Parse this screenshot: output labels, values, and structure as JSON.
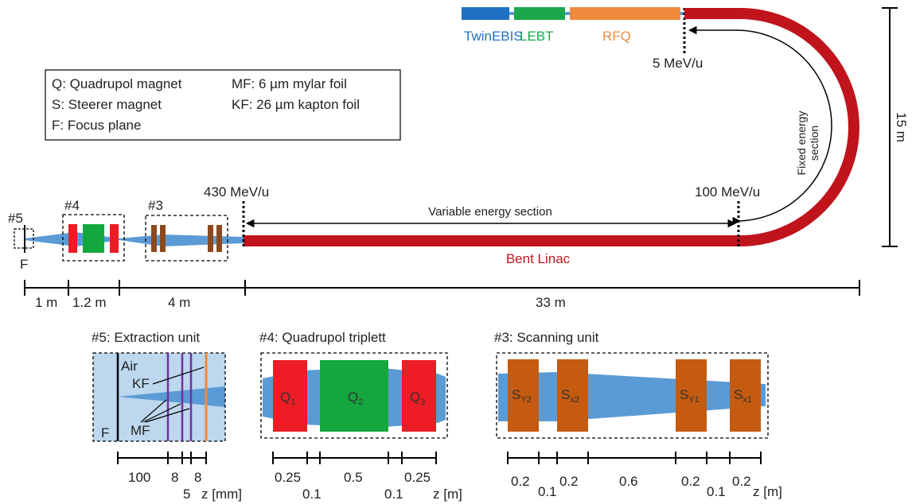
{
  "colors": {
    "twinebis": "#1f6fc4",
    "lebt": "#1aa84a",
    "rfq": "#ee8a3c",
    "linac": "#c0141c",
    "beam": "#5b9bd5",
    "quad_red": "#ee1c24",
    "quad_green": "#14a73e",
    "steerer": "#c55a11",
    "steerer_small": "#8b4a1e",
    "foil_mylar": "#7030a0",
    "foil_kapton": "#ee8a3c",
    "air": "#bdd7ee"
  },
  "sources": {
    "twinebis": "TwinEBIS",
    "lebt": "LEBT",
    "rfq": "RFQ"
  },
  "energies": {
    "e5": "5 MeV/u",
    "e100": "100 MeV/u",
    "e430": "430 MeV/u"
  },
  "sections": {
    "fixed_line1": "Fixed energy",
    "fixed_line2": "section",
    "variable": "Variable energy section",
    "bent_linac": "Bent Linac",
    "height": "15 m"
  },
  "legend": {
    "q": "Q: Quadrupol magnet",
    "s": "S: Steerer magnet",
    "f": "F: Focus plane",
    "mf": "MF: 6 µm mylar foil",
    "kf": "KF: 26 µm kapton foil"
  },
  "units": {
    "u5": "#5",
    "u4": "#4",
    "u3": "#3",
    "focus": "F"
  },
  "scale_main": {
    "d1": "1 m",
    "d2": "1.2 m",
    "d3": "4 m",
    "d4": "33 m"
  },
  "detail5": {
    "title": "#5: Extraction unit",
    "air": "Air",
    "kf": "KF",
    "mf": "MF",
    "f": "F",
    "s100": "100",
    "s8a": "8",
    "s8b": "8",
    "s5": "5",
    "unit": "z [mm]"
  },
  "detail4": {
    "title": "#4: Quadrupol triplett",
    "q1": "Q",
    "q1_sub": "1",
    "q2": "Q",
    "q2_sub": "2",
    "q3": "Q",
    "q3_sub": "3",
    "s025a": "0.25",
    "s01a": "0.1",
    "s05": "0.5",
    "s01b": "0.1",
    "s025b": "0.25",
    "unit": "z [m]"
  },
  "detail3": {
    "title": "#3: Scanning unit",
    "sy2": "S",
    "sy2_sub": "Y2",
    "sx2": "S",
    "sx2_sub": "x2",
    "sy1": "S",
    "sy1_sub": "Y1",
    "sx1": "S",
    "sx1_sub": "x1",
    "s02a": "0.2",
    "s01a": "0.1",
    "s02b": "0.2",
    "s06": "0.6",
    "s02c": "0.2",
    "s01b": "0.1",
    "s02d": "0.2",
    "unit": "z [m]"
  }
}
